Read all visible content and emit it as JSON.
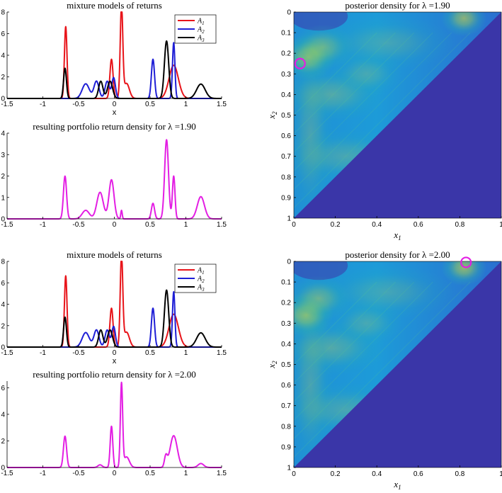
{
  "colors": {
    "A1": "#e8141a",
    "A2": "#1f1fd6",
    "A3": "#000000",
    "portfolio": "#e31ee3",
    "marker": "#e31ee3",
    "heat_bg": "#3a36a8"
  },
  "chart_data": [
    {
      "id": "mix1",
      "type": "line",
      "title": "mixture models of returns",
      "xlabel": "x",
      "xlim": [
        -1.5,
        1.5
      ],
      "ylim": [
        0,
        8
      ],
      "xticks": [
        "-1.5",
        "-1",
        "-0.5",
        "0",
        "0.5",
        "1",
        "1.5"
      ],
      "yticks": [
        "0",
        "2",
        "4",
        "6",
        "8"
      ],
      "legend_position": "top-right",
      "series": [
        {
          "name": "A1",
          "color_key": "A1",
          "components": [
            {
              "w": 0.3,
              "mu": -0.68,
              "s": 0.018
            },
            {
              "w": 0.2,
              "mu": -0.04,
              "s": 0.022
            },
            {
              "w": 0.38,
              "mu": 0.1,
              "s": 0.018
            },
            {
              "w": 0.14,
              "mu": 0.17,
              "s": 0.04
            },
            {
              "w": 0.5,
              "mu": 0.83,
              "s": 0.065
            }
          ]
        },
        {
          "name": "A2",
          "color_key": "A2",
          "components": [
            {
              "w": 0.17,
              "mu": -0.4,
              "s": 0.05
            },
            {
              "w": 0.14,
              "mu": -0.25,
              "s": 0.035
            },
            {
              "w": 0.12,
              "mu": -0.1,
              "s": 0.03
            },
            {
              "w": 0.12,
              "mu": -0.01,
              "s": 0.025
            },
            {
              "w": 0.2,
              "mu": 0.54,
              "s": 0.022
            },
            {
              "w": 0.22,
              "mu": 0.83,
              "s": 0.017
            }
          ]
        },
        {
          "name": "A3",
          "color_key": "A3",
          "components": [
            {
              "w": 0.14,
              "mu": -0.69,
              "s": 0.02
            },
            {
              "w": 0.12,
              "mu": -0.19,
              "s": 0.03
            },
            {
              "w": 0.14,
              "mu": -0.06,
              "s": 0.035
            },
            {
              "w": 0.4,
              "mu": 0.73,
              "s": 0.03
            },
            {
              "w": 0.2,
              "mu": 1.21,
              "s": 0.06
            }
          ]
        }
      ]
    },
    {
      "id": "port1",
      "type": "line",
      "title": "resulting portfolio return density for λ =1.90",
      "xlim": [
        -1.5,
        1.5
      ],
      "ylim": [
        0,
        4
      ],
      "xticks": [
        "-1.5",
        "-1",
        "-0.5",
        "0",
        "0.5",
        "1",
        "1.5"
      ],
      "yticks": [
        "0",
        "1",
        "2",
        "3",
        "4"
      ],
      "series": [
        {
          "name": "",
          "color_key": "portfolio",
          "components": [
            {
              "w": 0.11,
              "mu": -0.69,
              "s": 0.022
            },
            {
              "w": 0.05,
              "mu": -0.4,
              "s": 0.05
            },
            {
              "w": 0.14,
              "mu": -0.2,
              "s": 0.045
            },
            {
              "w": 0.16,
              "mu": -0.04,
              "s": 0.035
            },
            {
              "w": 0.01,
              "mu": 0.1,
              "s": 0.01
            },
            {
              "w": 0.04,
              "mu": 0.54,
              "s": 0.022
            },
            {
              "w": 0.25,
              "mu": 0.73,
              "s": 0.027
            },
            {
              "w": 0.09,
              "mu": 0.83,
              "s": 0.018
            },
            {
              "w": 0.13,
              "mu": 1.21,
              "s": 0.05
            }
          ]
        }
      ]
    },
    {
      "id": "mix2",
      "type": "line",
      "title": "mixture models of returns",
      "xlabel": "x",
      "xlim": [
        -1.5,
        1.5
      ],
      "ylim": [
        0,
        8
      ],
      "xticks": [
        "-1.5",
        "-1",
        "-0.5",
        "0",
        "0.5",
        "1",
        "1.5"
      ],
      "yticks": [
        "0",
        "2",
        "4",
        "6",
        "8"
      ],
      "legend_position": "top-right",
      "series": [
        {
          "name": "A1",
          "color_key": "A1",
          "components": [
            {
              "w": 0.3,
              "mu": -0.68,
              "s": 0.018
            },
            {
              "w": 0.2,
              "mu": -0.04,
              "s": 0.022
            },
            {
              "w": 0.38,
              "mu": 0.1,
              "s": 0.018
            },
            {
              "w": 0.14,
              "mu": 0.17,
              "s": 0.04
            },
            {
              "w": 0.5,
              "mu": 0.83,
              "s": 0.065
            }
          ]
        },
        {
          "name": "A2",
          "color_key": "A2",
          "components": [
            {
              "w": 0.17,
              "mu": -0.4,
              "s": 0.05
            },
            {
              "w": 0.14,
              "mu": -0.25,
              "s": 0.035
            },
            {
              "w": 0.12,
              "mu": -0.1,
              "s": 0.03
            },
            {
              "w": 0.12,
              "mu": -0.01,
              "s": 0.025
            },
            {
              "w": 0.2,
              "mu": 0.54,
              "s": 0.022
            },
            {
              "w": 0.22,
              "mu": 0.83,
              "s": 0.017
            }
          ]
        },
        {
          "name": "A3",
          "color_key": "A3",
          "components": [
            {
              "w": 0.14,
              "mu": -0.69,
              "s": 0.02
            },
            {
              "w": 0.12,
              "mu": -0.19,
              "s": 0.03
            },
            {
              "w": 0.14,
              "mu": -0.06,
              "s": 0.035
            },
            {
              "w": 0.4,
              "mu": 0.73,
              "s": 0.03
            },
            {
              "w": 0.2,
              "mu": 1.21,
              "s": 0.06
            }
          ]
        }
      ]
    },
    {
      "id": "port2",
      "type": "line",
      "title": "resulting portfolio return density for λ =2.00",
      "xlim": [
        -1.5,
        1.5
      ],
      "ylim": [
        0,
        6.5
      ],
      "xticks": [
        "-1.5",
        "-1",
        "-0.5",
        "0",
        "0.5",
        "1",
        "1.5"
      ],
      "yticks": [
        "0",
        "2",
        "4",
        "6"
      ],
      "series": [
        {
          "name": "",
          "color_key": "portfolio",
          "components": [
            {
              "w": 0.13,
              "mu": -0.69,
              "s": 0.022
            },
            {
              "w": 0.015,
              "mu": -0.2,
              "s": 0.03
            },
            {
              "w": 0.14,
              "mu": -0.04,
              "s": 0.018
            },
            {
              "w": 0.25,
              "mu": 0.1,
              "s": 0.016
            },
            {
              "w": 0.08,
              "mu": 0.17,
              "s": 0.04
            },
            {
              "w": 0.04,
              "mu": 0.72,
              "s": 0.02
            },
            {
              "w": 0.3,
              "mu": 0.83,
              "s": 0.05
            },
            {
              "w": 0.03,
              "mu": 1.21,
              "s": 0.04
            }
          ]
        }
      ]
    },
    {
      "id": "heat1",
      "type": "heatmap",
      "title": "posterior density for λ =1.90",
      "xlabel": "x1",
      "ylabel": "x2",
      "xlim": [
        0,
        1
      ],
      "ylim": [
        0,
        1
      ],
      "y_reversed": true,
      "xticks": [
        "0",
        "0.2",
        "0.4",
        "0.6",
        "0.8",
        "1"
      ],
      "yticks": [
        "0",
        "0.1",
        "0.2",
        "0.3",
        "0.4",
        "0.5",
        "0.6",
        "0.7",
        "0.8",
        "0.9",
        "1"
      ],
      "marker": {
        "x1": 0.03,
        "x2": 0.25
      },
      "blobs": [
        {
          "x": 0.07,
          "y": 0.22,
          "sx": 0.06,
          "sy": 0.05,
          "a": 0.55
        },
        {
          "x": 0.14,
          "y": 0.17,
          "sx": 0.07,
          "sy": 0.05,
          "a": 0.35
        },
        {
          "x": 0.82,
          "y": 0.03,
          "sx": 0.05,
          "sy": 0.04,
          "a": 0.5
        },
        {
          "x": 0.18,
          "y": 0.4,
          "sx": 0.12,
          "sy": 0.06,
          "a": 0.25
        },
        {
          "x": 0.35,
          "y": 0.3,
          "sx": 0.08,
          "sy": 0.05,
          "a": 0.2
        },
        {
          "x": 0.08,
          "y": 0.6,
          "sx": 0.05,
          "sy": 0.2,
          "a": 0.2
        },
        {
          "x": 0.25,
          "y": 0.7,
          "sx": 0.15,
          "sy": 0.06,
          "a": 0.2
        },
        {
          "x": 0.45,
          "y": 0.15,
          "sx": 0.15,
          "sy": 0.06,
          "a": 0.18
        }
      ]
    },
    {
      "id": "heat2",
      "type": "heatmap",
      "title": "posterior density for λ =2.00",
      "xlabel": "x1",
      "ylabel": "x2",
      "xlim": [
        0,
        1
      ],
      "ylim": [
        0,
        1
      ],
      "y_reversed": true,
      "xticks": [
        "0",
        "0.2",
        "0.4",
        "0.6",
        "0.8",
        "1"
      ],
      "yticks": [
        "0",
        "0.1",
        "0.2",
        "0.3",
        "0.4",
        "0.5",
        "0.6",
        "0.7",
        "0.8",
        "0.9",
        "1"
      ],
      "marker": {
        "x1": 0.83,
        "x2": 0.005
      },
      "blobs": [
        {
          "x": 0.06,
          "y": 0.26,
          "sx": 0.06,
          "sy": 0.05,
          "a": 0.55
        },
        {
          "x": 0.12,
          "y": 0.18,
          "sx": 0.07,
          "sy": 0.05,
          "a": 0.35
        },
        {
          "x": 0.82,
          "y": 0.03,
          "sx": 0.05,
          "sy": 0.04,
          "a": 0.55
        },
        {
          "x": 0.18,
          "y": 0.42,
          "sx": 0.12,
          "sy": 0.06,
          "a": 0.25
        },
        {
          "x": 0.35,
          "y": 0.3,
          "sx": 0.08,
          "sy": 0.05,
          "a": 0.2
        },
        {
          "x": 0.08,
          "y": 0.6,
          "sx": 0.05,
          "sy": 0.2,
          "a": 0.2
        },
        {
          "x": 0.25,
          "y": 0.72,
          "sx": 0.15,
          "sy": 0.06,
          "a": 0.2
        },
        {
          "x": 0.45,
          "y": 0.15,
          "sx": 0.15,
          "sy": 0.06,
          "a": 0.18
        }
      ]
    }
  ]
}
